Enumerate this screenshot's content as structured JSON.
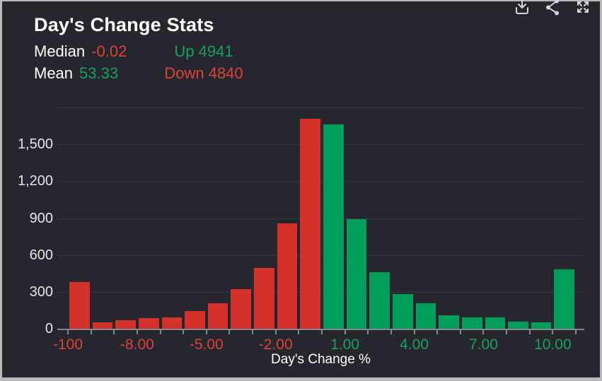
{
  "widget": {
    "title": "Day's Change Stats"
  },
  "stats": {
    "median_label": "Median",
    "median_value": "-0.02",
    "up_text": "Up 4941",
    "mean_label": "Mean",
    "mean_value": "53.33",
    "down_text": "Down 4840"
  },
  "toolbar": {
    "icons": [
      "download-icon",
      "share-icon",
      "expand-icon"
    ]
  },
  "colors": {
    "background": "#25262e",
    "border": "#b9b9b9",
    "bar_red": "#d4312b",
    "bar_green": "#009e58",
    "text_red": "#de4237",
    "text_green": "#15a161",
    "grid": "#35363e",
    "axis": "#85868f",
    "ylabel_text": "#e4e5e9",
    "title_text": "#ffffff"
  },
  "chart_data": {
    "type": "bar",
    "subtype": "histogram",
    "title": "Day's Change Stats",
    "xlabel": "Day's Change %",
    "ylabel": "",
    "ylim": [
      0,
      1800
    ],
    "grid": true,
    "legend": false,
    "ytick_values": [
      0,
      300,
      600,
      900,
      1200,
      1500
    ],
    "ytick_labels": [
      "0",
      "300",
      "600",
      "900",
      "1,200",
      "1,500"
    ],
    "gridline_values": [
      300,
      600,
      900,
      1200,
      1500,
      1800
    ],
    "bin_count": 22,
    "categories": [
      "-100",
      "-10",
      "-9",
      "-8",
      "-7",
      "-6",
      "-5",
      "-4",
      "-3",
      "-2",
      "-1",
      "0",
      "1",
      "2",
      "3",
      "4",
      "5",
      "6",
      "7",
      "8",
      "9",
      "10"
    ],
    "bars": [
      {
        "value": 385,
        "series": "down"
      },
      {
        "value": 55,
        "series": "down"
      },
      {
        "value": 75,
        "series": "down"
      },
      {
        "value": 90,
        "series": "down"
      },
      {
        "value": 95,
        "series": "down"
      },
      {
        "value": 150,
        "series": "down"
      },
      {
        "value": 215,
        "series": "down"
      },
      {
        "value": 330,
        "series": "down"
      },
      {
        "value": 500,
        "series": "down"
      },
      {
        "value": 865,
        "series": "down"
      },
      {
        "value": 1715,
        "series": "down"
      },
      {
        "value": 1670,
        "series": "up"
      },
      {
        "value": 900,
        "series": "up"
      },
      {
        "value": 465,
        "series": "up"
      },
      {
        "value": 285,
        "series": "up"
      },
      {
        "value": 210,
        "series": "up"
      },
      {
        "value": 115,
        "series": "up"
      },
      {
        "value": 100,
        "series": "up"
      },
      {
        "value": 95,
        "series": "up"
      },
      {
        "value": 65,
        "series": "up"
      },
      {
        "value": 55,
        "series": "up"
      },
      {
        "value": 490,
        "series": "up"
      }
    ],
    "series": [
      {
        "name": "down",
        "color": "#d4312b",
        "values": [
          385,
          55,
          75,
          90,
          95,
          150,
          215,
          330,
          500,
          865,
          1715
        ]
      },
      {
        "name": "up",
        "color": "#009e58",
        "values": [
          1670,
          900,
          465,
          285,
          210,
          115,
          100,
          95,
          65,
          55,
          490
        ]
      }
    ],
    "xtick_labels": [
      {
        "text": "-100",
        "boundary_index": 0,
        "color": "red"
      },
      {
        "text": "-8.00",
        "boundary_index": 3,
        "color": "red"
      },
      {
        "text": "-5.00",
        "boundary_index": 6,
        "color": "red"
      },
      {
        "text": "-2.00",
        "boundary_index": 9,
        "color": "red"
      },
      {
        "text": "1.00",
        "boundary_index": 12,
        "color": "green"
      },
      {
        "text": "4.00",
        "boundary_index": 15,
        "color": "green"
      },
      {
        "text": "7.00",
        "boundary_index": 18,
        "color": "green"
      },
      {
        "text": "10.00",
        "boundary_index": 21,
        "color": "green"
      }
    ]
  }
}
